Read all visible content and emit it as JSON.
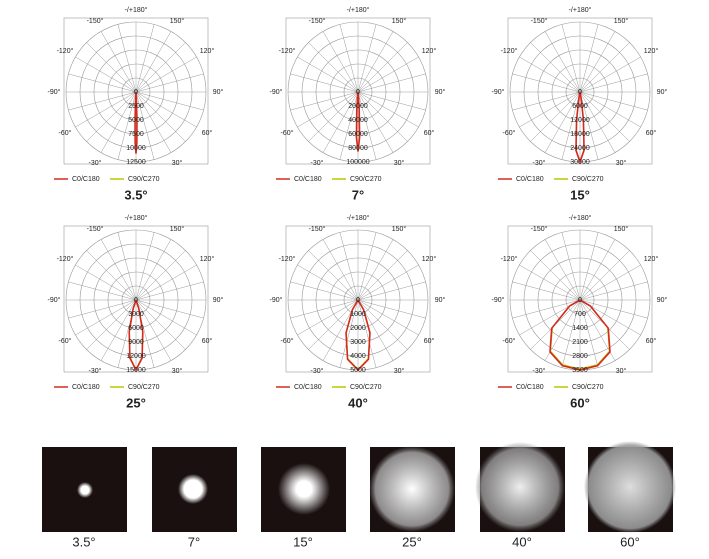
{
  "chart_data": [
    {
      "type": "polar",
      "title": "3.5°",
      "rlim": [
        0,
        12500
      ],
      "rticks": [
        0,
        2500,
        5000,
        7500,
        10000,
        12500
      ],
      "angle_ticks": [
        {
          "value": -150,
          "label": "-150°"
        },
        {
          "value": 180,
          "label": "-/+180°"
        },
        {
          "value": 150,
          "label": "150°"
        },
        {
          "value": -120,
          "label": "-120°"
        },
        {
          "value": 120,
          "label": "120°"
        },
        {
          "value": -90,
          "label": "-90°"
        },
        {
          "value": 90,
          "label": "90°"
        },
        {
          "value": -60,
          "label": "-60°"
        },
        {
          "value": 60,
          "label": "60°"
        },
        {
          "value": -30,
          "label": "-30°"
        },
        {
          "value": 30,
          "label": "30°"
        }
      ],
      "x": [
        -5,
        -3,
        -2,
        -1,
        0,
        1,
        2,
        3,
        5
      ],
      "series": [
        {
          "name": "C0/C180",
          "color": "#d42a1e",
          "values": [
            0,
            1500,
            5000,
            9000,
            11000,
            9000,
            5000,
            1500,
            0
          ]
        },
        {
          "name": "C90/C270",
          "color": "#b9c800",
          "values": [
            0,
            1400,
            4800,
            8800,
            10900,
            8800,
            4800,
            1400,
            0
          ]
        }
      ]
    },
    {
      "type": "polar",
      "title": "7°",
      "rlim": [
        0,
        100000
      ],
      "rticks": [
        0,
        20000,
        40000,
        60000,
        80000,
        100000
      ],
      "angle_ticks": [
        {
          "value": -150,
          "label": "-150°"
        },
        {
          "value": 180,
          "label": "-/+180°"
        },
        {
          "value": 150,
          "label": "150°"
        },
        {
          "value": -120,
          "label": "-120°"
        },
        {
          "value": 120,
          "label": "120°"
        },
        {
          "value": -90,
          "label": "-90°"
        },
        {
          "value": 90,
          "label": "90°"
        },
        {
          "value": -60,
          "label": "-60°"
        },
        {
          "value": 60,
          "label": "60°"
        },
        {
          "value": -30,
          "label": "-30°"
        },
        {
          "value": 30,
          "label": "30°"
        }
      ],
      "x": [
        -8,
        -6,
        -4,
        -2,
        0,
        2,
        4,
        6,
        8
      ],
      "series": [
        {
          "name": "C0/C180",
          "color": "#d42a1e",
          "values": [
            0,
            5000,
            25000,
            65000,
            85000,
            65000,
            25000,
            5000,
            0
          ]
        },
        {
          "name": "C90/C270",
          "color": "#b9c800",
          "values": [
            0,
            4800,
            24000,
            64000,
            84000,
            64000,
            24000,
            4800,
            0
          ]
        }
      ]
    },
    {
      "type": "polar",
      "title": "15°",
      "rlim": [
        0,
        30000
      ],
      "rticks": [
        0,
        6000,
        12000,
        18000,
        24000,
        30000
      ],
      "angle_ticks": [
        {
          "value": -150,
          "label": "-150°"
        },
        {
          "value": 180,
          "label": "-/+180°"
        },
        {
          "value": 150,
          "label": "150°"
        },
        {
          "value": -120,
          "label": "-120°"
        },
        {
          "value": 120,
          "label": "120°"
        },
        {
          "value": -90,
          "label": "-90°"
        },
        {
          "value": 90,
          "label": "90°"
        },
        {
          "value": -60,
          "label": "-60°"
        },
        {
          "value": 60,
          "label": "60°"
        },
        {
          "value": -30,
          "label": "-30°"
        },
        {
          "value": 30,
          "label": "30°"
        }
      ],
      "x": [
        -15,
        -10,
        -7,
        -4,
        0,
        4,
        7,
        10,
        15
      ],
      "series": [
        {
          "name": "C0/C180",
          "color": "#d42a1e",
          "values": [
            0,
            3000,
            12000,
            25000,
            30000,
            25000,
            12000,
            3000,
            0
          ]
        },
        {
          "name": "C90/C270",
          "color": "#b9c800",
          "values": [
            0,
            2900,
            11800,
            24800,
            29800,
            24800,
            11800,
            2900,
            0
          ]
        }
      ]
    },
    {
      "type": "polar",
      "title": "25°",
      "rlim": [
        0,
        15000
      ],
      "rticks": [
        0,
        3000,
        6000,
        9000,
        12000,
        15000
      ],
      "angle_ticks": [
        {
          "value": -150,
          "label": "-150°"
        },
        {
          "value": 180,
          "label": "-/+180°"
        },
        {
          "value": 150,
          "label": "150°"
        },
        {
          "value": -120,
          "label": "-120°"
        },
        {
          "value": 120,
          "label": "120°"
        },
        {
          "value": -90,
          "label": "-90°"
        },
        {
          "value": 90,
          "label": "90°"
        },
        {
          "value": -60,
          "label": "-60°"
        },
        {
          "value": 60,
          "label": "60°"
        },
        {
          "value": -30,
          "label": "-30°"
        },
        {
          "value": 30,
          "label": "30°"
        }
      ],
      "x": [
        -25,
        -18,
        -12,
        -6,
        0,
        6,
        12,
        18,
        25
      ],
      "series": [
        {
          "name": "C0/C180",
          "color": "#d42a1e",
          "values": [
            0,
            2000,
            7000,
            12500,
            15000,
            12500,
            7000,
            2000,
            0
          ]
        },
        {
          "name": "C90/C270",
          "color": "#b9c800",
          "values": [
            0,
            1900,
            6800,
            12300,
            14900,
            12300,
            6800,
            1900,
            0
          ]
        }
      ]
    },
    {
      "type": "polar",
      "title": "40°",
      "rlim": [
        0,
        5000
      ],
      "rticks": [
        0,
        1000,
        2000,
        3000,
        4000,
        5000
      ],
      "angle_ticks": [
        {
          "value": -150,
          "label": "-150°"
        },
        {
          "value": 180,
          "label": "-/+180°"
        },
        {
          "value": 150,
          "label": "150°"
        },
        {
          "value": -120,
          "label": "-120°"
        },
        {
          "value": 120,
          "label": "120°"
        },
        {
          "value": -90,
          "label": "-90°"
        },
        {
          "value": 90,
          "label": "90°"
        },
        {
          "value": -60,
          "label": "-60°"
        },
        {
          "value": 60,
          "label": "60°"
        },
        {
          "value": -30,
          "label": "-30°"
        },
        {
          "value": 30,
          "label": "30°"
        }
      ],
      "x": [
        -40,
        -30,
        -20,
        -10,
        0,
        10,
        20,
        30,
        40
      ],
      "series": [
        {
          "name": "C0/C180",
          "color": "#d42a1e",
          "values": [
            0,
            800,
            2500,
            4300,
            5000,
            4300,
            2500,
            800,
            0
          ]
        },
        {
          "name": "C90/C270",
          "color": "#b9c800",
          "values": [
            0,
            780,
            2450,
            4250,
            4950,
            4250,
            2450,
            780,
            0
          ]
        }
      ]
    },
    {
      "type": "polar",
      "title": "60°",
      "rlim": [
        0,
        3500
      ],
      "rticks": [
        0,
        700,
        1400,
        2100,
        2800,
        3500
      ],
      "angle_ticks": [
        {
          "value": -150,
          "label": "-150°"
        },
        {
          "value": 180,
          "label": "-/+180°"
        },
        {
          "value": 150,
          "label": "150°"
        },
        {
          "value": -120,
          "label": "-120°"
        },
        {
          "value": 120,
          "label": "120°"
        },
        {
          "value": -90,
          "label": "-90°"
        },
        {
          "value": 90,
          "label": "90°"
        },
        {
          "value": -60,
          "label": "-60°"
        },
        {
          "value": 60,
          "label": "60°"
        },
        {
          "value": -30,
          "label": "-30°"
        },
        {
          "value": 30,
          "label": "30°"
        }
      ],
      "x": [
        -70,
        -60,
        -45,
        -30,
        -15,
        0,
        15,
        30,
        45,
        60,
        70
      ],
      "series": [
        {
          "name": "C0/C180",
          "color": "#d42a1e",
          "values": [
            0,
            600,
            2000,
            3000,
            3400,
            3500,
            3400,
            3000,
            2000,
            600,
            0
          ]
        },
        {
          "name": "C90/C270",
          "color": "#b9c800",
          "values": [
            0,
            580,
            1950,
            2950,
            3350,
            3450,
            3350,
            2950,
            1950,
            580,
            0
          ]
        }
      ]
    }
  ],
  "spots": {
    "labels": [
      "3.5°",
      "7°",
      "15°",
      "25°",
      "40°",
      "60°"
    ]
  }
}
